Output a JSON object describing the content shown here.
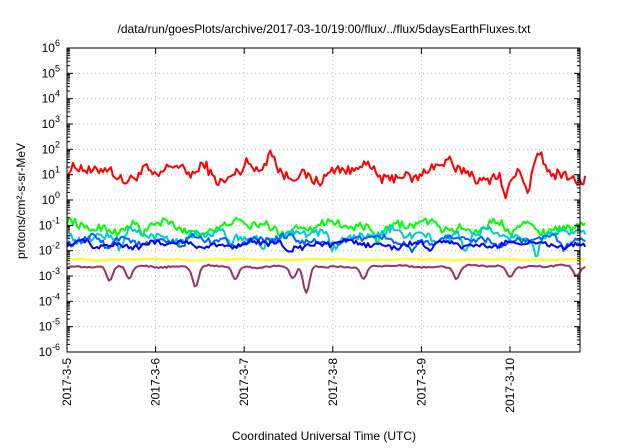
{
  "chart_data": {
    "type": "line",
    "title": "/data/run/goesPlots/archive/2017-03-10/19:00/flux/../flux/5daysEarthFluxes.txt",
    "xlabel": "Coordinated Universal Time (UTC)",
    "ylabel": "protons/cm²-s-sr-MeV",
    "x_tick_labels": [
      "2017-3-5",
      "2017-3-6",
      "2017-3-7",
      "2017-3-8",
      "2017-3-9",
      "2017-3-10"
    ],
    "xlim_days": [
      0,
      5.85
    ],
    "y_scale": "log",
    "ylim": [
      1e-06,
      1000000.0
    ],
    "y_tick_exponents": [
      -6,
      -5,
      -4,
      -3,
      -2,
      -1,
      0,
      1,
      2,
      3,
      4,
      5,
      6
    ],
    "grid": true,
    "legend": "none",
    "series": [
      {
        "color": "#ff0000",
        "base_log": 1.05,
        "amp": 0.35,
        "spikes": [
          [
            0.9,
            0.3
          ],
          [
            1.55,
            0.35
          ],
          [
            2.05,
            0.6
          ],
          [
            2.3,
            0.6
          ],
          [
            3.3,
            0.25
          ],
          [
            4.3,
            0.55
          ],
          [
            4.95,
            -0.9
          ],
          [
            5.2,
            -1.0
          ],
          [
            5.35,
            0.7
          ]
        ]
      },
      {
        "color": "#00ff00",
        "base_log": -1.05,
        "amp": 0.25,
        "spikes": [
          [
            0.85,
            -0.4
          ],
          [
            1.5,
            -0.3
          ],
          [
            3.5,
            -0.3
          ],
          [
            5.0,
            -0.3
          ]
        ]
      },
      {
        "color": "#00cccc",
        "base_log": -1.4,
        "amp": 0.25,
        "spikes": [
          [
            0.6,
            -0.6
          ],
          [
            1.85,
            -0.6
          ],
          [
            2.2,
            -0.5
          ],
          [
            3.0,
            -0.5
          ],
          [
            4.5,
            -0.6
          ],
          [
            5.3,
            -0.5
          ]
        ]
      },
      {
        "color": "#0066ff",
        "base_log": -1.6,
        "amp": 0.2,
        "spikes": [
          [
            0.45,
            -0.4
          ],
          [
            1.3,
            -0.4
          ],
          [
            3.9,
            -0.4
          ],
          [
            5.6,
            -0.3
          ]
        ]
      },
      {
        "color": "#0000ff",
        "base_log": -1.75,
        "amp": 0.15,
        "spikes": [
          [
            0.3,
            -0.3
          ],
          [
            2.5,
            -0.3
          ],
          [
            4.1,
            -0.3
          ]
        ]
      },
      {
        "color": "#ffff00",
        "base_log": -2.35,
        "amp": 0.03,
        "spikes": []
      },
      {
        "color": "#993366",
        "base_log": -2.62,
        "amp": 0.05,
        "spikes": [
          [
            0.48,
            -0.6
          ],
          [
            0.7,
            -0.5
          ],
          [
            1.45,
            -0.8
          ],
          [
            1.9,
            -0.5
          ],
          [
            2.55,
            -0.5
          ],
          [
            2.7,
            -1.1
          ],
          [
            3.35,
            -0.5
          ],
          [
            4.4,
            -0.5
          ],
          [
            5.0,
            -0.4
          ],
          [
            5.75,
            -0.4
          ]
        ]
      }
    ]
  }
}
